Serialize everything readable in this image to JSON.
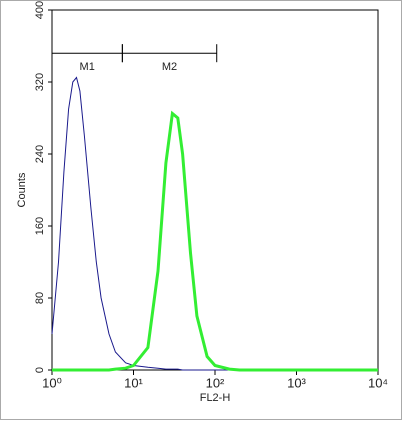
{
  "chart_data": {
    "type": "line",
    "x_label": "FL2-H",
    "y_label": "Counts",
    "xscale": "log",
    "x": [
      1,
      1.2,
      1.4,
      1.6,
      1.8,
      2,
      2.2,
      2.5,
      3,
      3.5,
      4,
      5,
      6,
      8,
      10,
      15,
      20,
      25,
      30,
      35,
      40,
      50,
      60,
      80,
      100,
      150,
      200,
      500,
      1000,
      10000
    ],
    "series": [
      {
        "color": "#1a1a8c",
        "values": [
          40,
          120,
          220,
          290,
          320,
          325,
          310,
          260,
          180,
          120,
          80,
          40,
          20,
          8,
          5,
          3,
          2,
          1,
          1,
          1,
          0,
          0,
          0,
          0,
          0,
          0,
          0,
          0,
          0,
          0
        ]
      },
      {
        "color": "#33ee33",
        "values": [
          0,
          0,
          0,
          0,
          0,
          0,
          0,
          0,
          0,
          0,
          0,
          0,
          1,
          2,
          5,
          25,
          110,
          230,
          285,
          280,
          240,
          130,
          60,
          15,
          5,
          1,
          0,
          0,
          0,
          0
        ]
      }
    ],
    "markers": [
      {
        "label": "M1",
        "range": [
          1,
          7.3
        ]
      },
      {
        "label": "M2",
        "range": [
          7.3,
          105
        ]
      }
    ],
    "marker_y": 352,
    "xlim": [
      1,
      10000
    ],
    "xticks": [
      {
        "value": 1,
        "label": "10⁰"
      },
      {
        "value": 10,
        "label": "10¹"
      },
      {
        "value": 100,
        "label": "10²"
      },
      {
        "value": 1000,
        "label": "10³"
      },
      {
        "value": 10000,
        "label": "10⁴"
      }
    ],
    "ylim": [
      0,
      400
    ],
    "yticks": [
      0,
      80,
      160,
      240,
      320,
      400
    ]
  }
}
